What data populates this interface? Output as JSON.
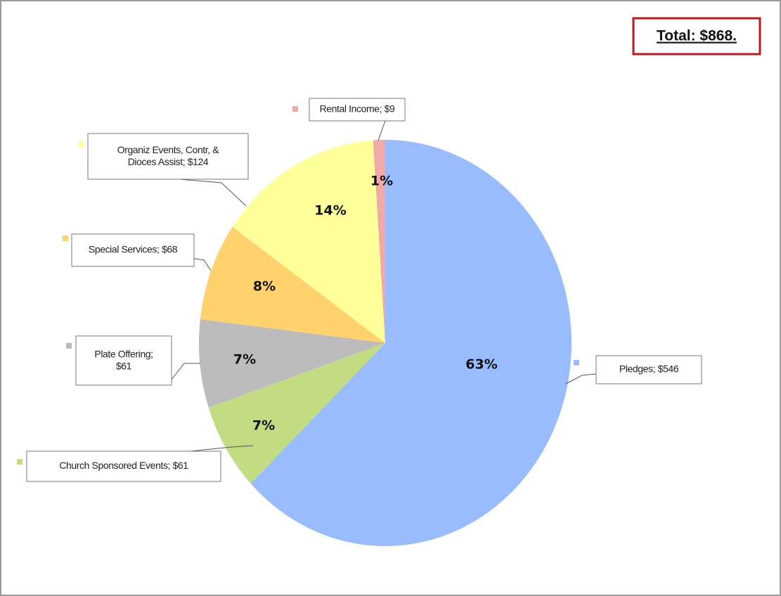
{
  "chart_data": {
    "type": "pie",
    "total_label": "Total: $868.",
    "labels": [
      "Pledges; $546",
      "Church Sponsored Events; $61",
      "Plate Offering;\n$61",
      "Special Services; $68",
      "Organiz Events, Contr, &\nDioces Assist; $124",
      "Rental Income; $9"
    ],
    "values": [
      546,
      61,
      61,
      68,
      124,
      9
    ],
    "percents": [
      63,
      7,
      7,
      8,
      14,
      1
    ],
    "percent_labels": [
      "63%",
      "7%",
      "7%",
      "8%",
      "14%",
      "1%"
    ],
    "colors": [
      "#99bbff",
      "#c2dc82",
      "#bcbcbc",
      "#ffd26e",
      "#ffff99",
      "#f0a8a8"
    ]
  }
}
